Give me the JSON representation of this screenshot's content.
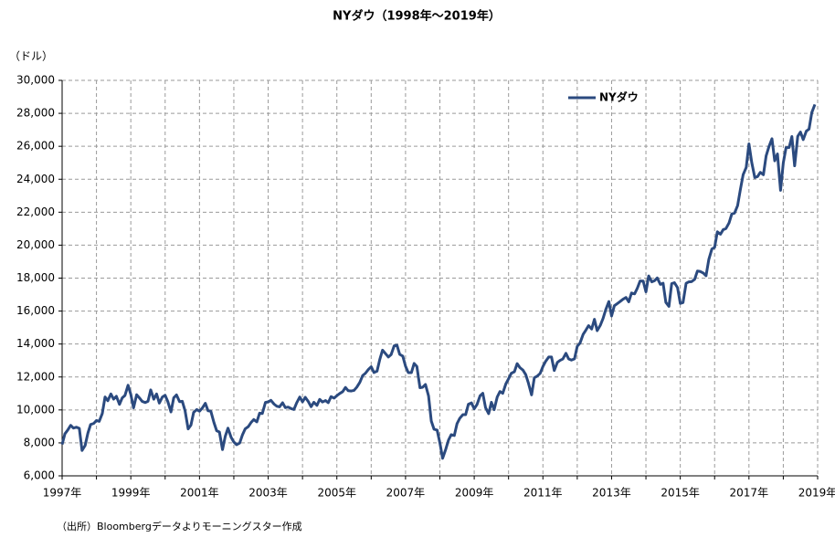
{
  "chart_data": {
    "type": "line",
    "title": "NYダウ（1998年～2019年）",
    "y_label": "（ドル）",
    "source": "（出所）Bloombergデータよりモーニングスター作成",
    "xlim": [
      1997,
      2019
    ],
    "ylim": [
      6000,
      30000
    ],
    "yticks": [
      {
        "value": 6000,
        "label": "6,000"
      },
      {
        "value": 8000,
        "label": "8,000"
      },
      {
        "value": 10000,
        "label": "10,000"
      },
      {
        "value": 12000,
        "label": "12,000"
      },
      {
        "value": 14000,
        "label": "14,000"
      },
      {
        "value": 16000,
        "label": "16,000"
      },
      {
        "value": 18000,
        "label": "18,000"
      },
      {
        "value": 20000,
        "label": "20,000"
      },
      {
        "value": 22000,
        "label": "22,000"
      },
      {
        "value": 24000,
        "label": "24,000"
      },
      {
        "value": 26000,
        "label": "26,000"
      },
      {
        "value": 28000,
        "label": "28,000"
      },
      {
        "value": 30000,
        "label": "30,000"
      }
    ],
    "xticks": [
      {
        "value": 1997,
        "label": "1997年"
      },
      {
        "value": 1999,
        "label": "1999年"
      },
      {
        "value": 2001,
        "label": "2001年"
      },
      {
        "value": 2003,
        "label": "2003年"
      },
      {
        "value": 2005,
        "label": "2005年"
      },
      {
        "value": 2007,
        "label": "2007年"
      },
      {
        "value": 2009,
        "label": "2009年"
      },
      {
        "value": 2011,
        "label": "2011年"
      },
      {
        "value": 2013,
        "label": "2013年"
      },
      {
        "value": 2015,
        "label": "2015年"
      },
      {
        "value": 2017,
        "label": "2017年"
      },
      {
        "value": 2019,
        "label": "2019年"
      }
    ],
    "x_minor_ticks": [
      1998,
      2000,
      2002,
      2004,
      2006,
      2008,
      2010,
      2012,
      2014,
      2016,
      2018
    ],
    "grid": true,
    "legend": "upper-right",
    "x": [
      1997,
      1997.08,
      1997.17,
      1997.25,
      1997.33,
      1997.42,
      1997.5,
      1997.58,
      1997.67,
      1997.75,
      1997.83,
      1997.92,
      1998,
      1998.08,
      1998.17,
      1998.25,
      1998.33,
      1998.42,
      1998.5,
      1998.58,
      1998.67,
      1998.75,
      1998.83,
      1998.92,
      1999,
      1999.08,
      1999.17,
      1999.25,
      1999.33,
      1999.42,
      1999.5,
      1999.58,
      1999.67,
      1999.75,
      1999.83,
      1999.92,
      2000,
      2000.08,
      2000.17,
      2000.25,
      2000.33,
      2000.42,
      2000.5,
      2000.58,
      2000.67,
      2000.75,
      2000.83,
      2000.92,
      2001,
      2001.08,
      2001.17,
      2001.25,
      2001.33,
      2001.42,
      2001.5,
      2001.58,
      2001.67,
      2001.75,
      2001.83,
      2001.92,
      2002,
      2002.08,
      2002.17,
      2002.25,
      2002.33,
      2002.42,
      2002.5,
      2002.58,
      2002.67,
      2002.75,
      2002.83,
      2002.92,
      2003,
      2003.08,
      2003.17,
      2003.25,
      2003.33,
      2003.42,
      2003.5,
      2003.58,
      2003.67,
      2003.75,
      2003.83,
      2003.92,
      2004,
      2004.08,
      2004.17,
      2004.25,
      2004.33,
      2004.42,
      2004.5,
      2004.58,
      2004.67,
      2004.75,
      2004.83,
      2004.92,
      2005,
      2005.08,
      2005.17,
      2005.25,
      2005.33,
      2005.42,
      2005.5,
      2005.58,
      2005.67,
      2005.75,
      2005.83,
      2005.92,
      2006,
      2006.08,
      2006.17,
      2006.25,
      2006.33,
      2006.42,
      2006.5,
      2006.58,
      2006.67,
      2006.75,
      2006.83,
      2006.92,
      2007,
      2007.08,
      2007.17,
      2007.25,
      2007.33,
      2007.42,
      2007.5,
      2007.58,
      2007.67,
      2007.75,
      2007.83,
      2007.92,
      2008,
      2008.08,
      2008.17,
      2008.25,
      2008.33,
      2008.42,
      2008.5,
      2008.58,
      2008.67,
      2008.75,
      2008.83,
      2008.92,
      2009,
      2009.08,
      2009.17,
      2009.25,
      2009.33,
      2009.42,
      2009.5,
      2009.58,
      2009.67,
      2009.75,
      2009.83,
      2009.92,
      2010,
      2010.08,
      2010.17,
      2010.25,
      2010.33,
      2010.42,
      2010.5,
      2010.58,
      2010.67,
      2010.75,
      2010.83,
      2010.92,
      2011,
      2011.08,
      2011.17,
      2011.25,
      2011.33,
      2011.42,
      2011.5,
      2011.58,
      2011.67,
      2011.75,
      2011.83,
      2011.92,
      2012,
      2012.08,
      2012.17,
      2012.25,
      2012.33,
      2012.42,
      2012.5,
      2012.58,
      2012.67,
      2012.75,
      2012.83,
      2012.92,
      2013,
      2013.08,
      2013.17,
      2013.25,
      2013.33,
      2013.42,
      2013.5,
      2013.58,
      2013.67,
      2013.75,
      2013.83,
      2013.92,
      2014,
      2014.08,
      2014.17,
      2014.25,
      2014.33,
      2014.42,
      2014.5,
      2014.58,
      2014.67,
      2014.75,
      2014.83,
      2014.92,
      2015,
      2015.08,
      2015.17,
      2015.25,
      2015.33,
      2015.42,
      2015.5,
      2015.58,
      2015.67,
      2015.75,
      2015.83,
      2015.92,
      2016,
      2016.08,
      2016.17,
      2016.25,
      2016.33,
      2016.42,
      2016.5,
      2016.58,
      2016.67,
      2016.75,
      2016.83,
      2016.92,
      2017,
      2017.08,
      2017.17,
      2017.25,
      2017.33,
      2017.42,
      2017.5,
      2017.58,
      2017.67,
      2017.75,
      2017.83,
      2017.92,
      2018,
      2018.08,
      2018.17,
      2018.25,
      2018.33,
      2018.42,
      2018.5,
      2018.58,
      2018.67,
      2018.75,
      2018.83,
      2018.92
    ],
    "series": [
      {
        "name": "NYダウ",
        "color": "#2b4a7f",
        "values": [
          7907,
          8546,
          8800,
          9063,
          8900,
          8952,
          8883,
          7539,
          7843,
          8592,
          9117,
          9181,
          9359,
          9307,
          9786,
          10789,
          10560,
          10971,
          10655,
          10829,
          10337,
          10729,
          10878,
          11497,
          10941,
          10128,
          10922,
          10734,
          10522,
          10448,
          10522,
          11215,
          10651,
          10971,
          10415,
          10787,
          10887,
          10495,
          9879,
          10735,
          10912,
          10502,
          10523,
          9950,
          8848,
          9075,
          9852,
          10022,
          9920,
          10106,
          10404,
          9946,
          9925,
          9243,
          8737,
          8664,
          7592,
          8397,
          8896,
          8342,
          8054,
          7891,
          7992,
          8480,
          8850,
          8985,
          9234,
          9416,
          9275,
          9801,
          9782,
          10454,
          10488,
          10584,
          10358,
          10226,
          10188,
          10435,
          10140,
          10174,
          10080,
          10027,
          10428,
          10783,
          10490,
          10766,
          10504,
          10193,
          10467,
          10275,
          10641,
          10482,
          10569,
          10440,
          10806,
          10718,
          10865,
          10993,
          11109,
          11367,
          11168,
          11150,
          11186,
          11381,
          11679,
          12081,
          12222,
          12463,
          12622,
          12269,
          12354,
          13063,
          13628,
          13409,
          13212,
          13358,
          13896,
          13930,
          13372,
          13265,
          12650,
          12266,
          12263,
          12820,
          12638,
          11350,
          11378,
          11544,
          10851,
          9325,
          8829,
          8776,
          8001,
          7063,
          7609,
          8168,
          8500,
          8447,
          9172,
          9496,
          9712,
          9713,
          10345,
          10428,
          10067,
          10325,
          10857,
          11009,
          10137,
          9774,
          10466,
          10015,
          10788,
          11118,
          11006,
          11578,
          11892,
          12226,
          12320,
          12811,
          12570,
          12414,
          12143,
          11614,
          10913,
          11955,
          12046,
          12218,
          12633,
          12952,
          13212,
          13214,
          12393,
          12880,
          13009,
          13091,
          13437,
          13096,
          13026,
          13104,
          13861,
          14054,
          14579,
          14840,
          15116,
          14910,
          15500,
          14810,
          15130,
          15546,
          16086,
          16577,
          15699,
          16322,
          16458,
          16581,
          16717,
          16827,
          16563,
          17098,
          17043,
          17391,
          17828,
          17823,
          17165,
          18133,
          17776,
          17841,
          18011,
          17620,
          17690,
          16528,
          16285,
          17664,
          17720,
          17425,
          16466,
          16517,
          17685,
          17774,
          17787,
          17930,
          18432,
          18401,
          18308,
          18142,
          19124,
          19763,
          19864,
          20812,
          20663,
          20941,
          21009,
          21350,
          21891,
          21948,
          22405,
          23377,
          24272,
          24719,
          26149,
          25029,
          24103,
          24163,
          24416,
          24271,
          25415,
          25965,
          26458,
          25116,
          25538,
          23327,
          24999,
          25916,
          25929,
          26593,
          24815,
          26600,
          26864,
          26403,
          26917,
          27046,
          28051,
          28538
        ]
      }
    ]
  }
}
